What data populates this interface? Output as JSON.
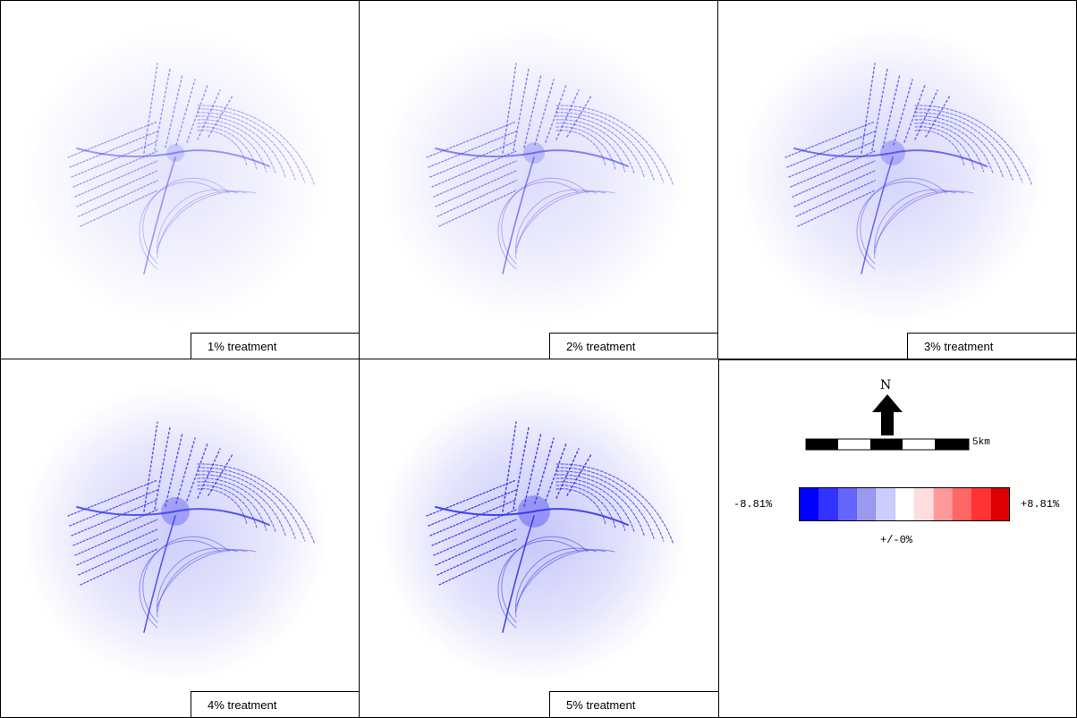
{
  "panels": [
    {
      "caption": "1% treatment",
      "intensity": 0.2
    },
    {
      "caption": "2% treatment",
      "intensity": 0.4
    },
    {
      "caption": "3% treatment",
      "intensity": 0.6
    },
    {
      "caption": "4% treatment",
      "intensity": 0.8
    },
    {
      "caption": "5% treatment",
      "intensity": 1.0
    }
  ],
  "legend": {
    "north_label": "N",
    "scale_label": "5km",
    "min_label": "-8.81%",
    "max_label": "+8.81%",
    "mid_label": "+/-0%",
    "colors": [
      "#0000ff",
      "#3333ff",
      "#6666ff",
      "#9999ee",
      "#ccccff",
      "#ffffff",
      "#ffdddd",
      "#ff9999",
      "#ff6666",
      "#ff3333",
      "#dd0000"
    ]
  },
  "map_color": "#3333ee"
}
